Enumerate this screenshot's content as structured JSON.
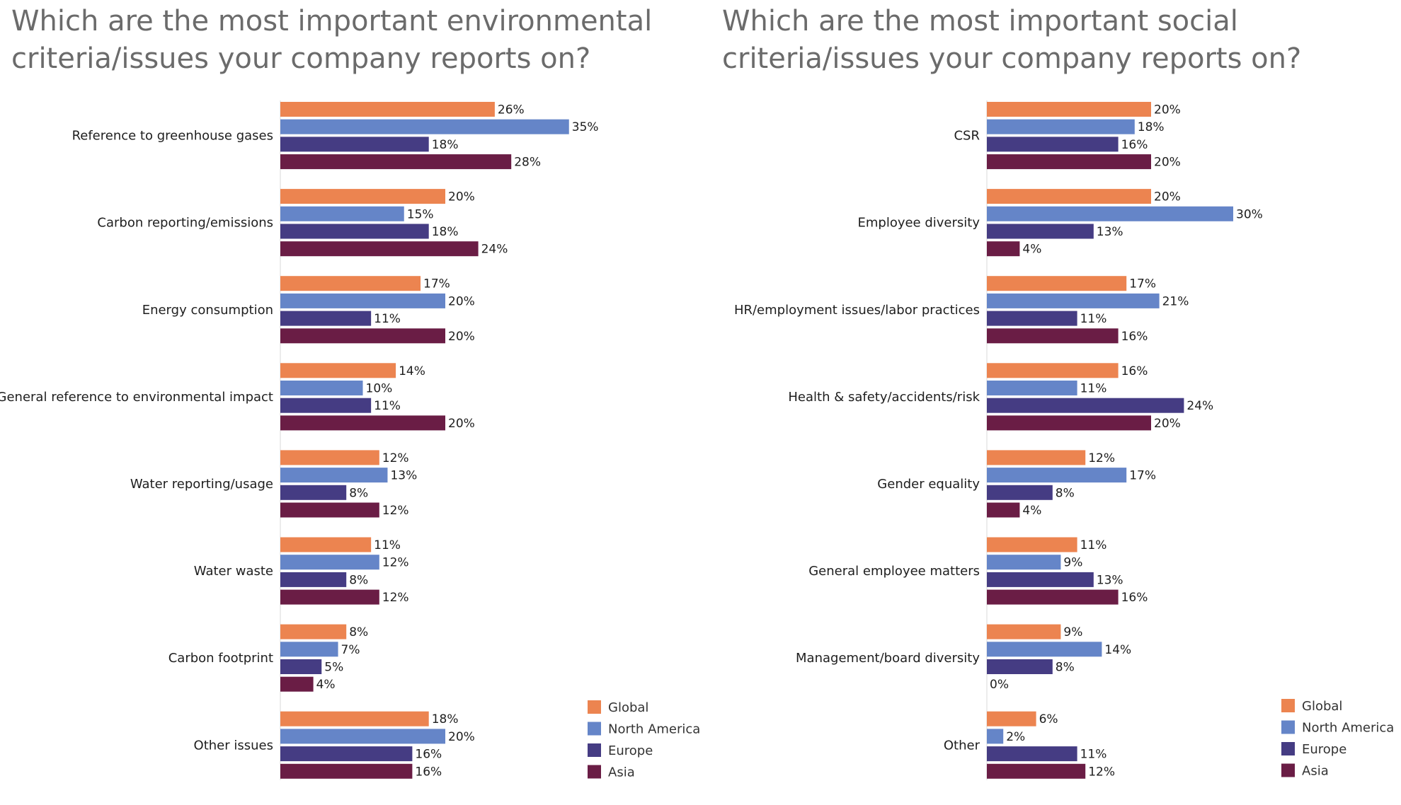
{
  "colors": {
    "Global": "#ec8450",
    "North America": "#6585c8",
    "Europe": "#453c83",
    "Asia": "#6a1d45",
    "title": "#6b6b6b"
  },
  "chart_data": [
    {
      "type": "bar",
      "orientation": "horizontal",
      "title": "Which are the most important environmental\ncriteria/issues your company reports on?",
      "categories": [
        "Reference to greenhouse gases",
        "Carbon reporting/emissions",
        "Energy consumption",
        "General reference to environmental impact",
        "Water reporting/usage",
        "Water waste",
        "Carbon footprint",
        "Other issues"
      ],
      "series": [
        {
          "name": "Global",
          "values": [
            26,
            20,
            17,
            14,
            12,
            11,
            8,
            18
          ]
        },
        {
          "name": "North America",
          "values": [
            35,
            15,
            20,
            10,
            13,
            12,
            7,
            20
          ]
        },
        {
          "name": "Europe",
          "values": [
            18,
            18,
            11,
            11,
            8,
            8,
            5,
            16
          ]
        },
        {
          "name": "Asia",
          "values": [
            28,
            24,
            20,
            20,
            12,
            12,
            4,
            16
          ]
        }
      ],
      "value_suffix": "%",
      "legend": "bottom-right",
      "grid": false
    },
    {
      "type": "bar",
      "orientation": "horizontal",
      "title": "Which are the most important social\ncriteria/issues your company reports on?",
      "categories": [
        "CSR",
        "Employee diversity",
        "HR/employment issues/labor practices",
        "Health & safety/accidents/risk",
        "Gender equality",
        "General employee matters",
        "Management/board diversity",
        "Other"
      ],
      "series": [
        {
          "name": "Global",
          "values": [
            20,
            20,
            17,
            16,
            12,
            11,
            9,
            6
          ]
        },
        {
          "name": "North America",
          "values": [
            18,
            30,
            21,
            11,
            17,
            9,
            14,
            2
          ]
        },
        {
          "name": "Europe",
          "values": [
            16,
            13,
            11,
            24,
            8,
            13,
            8,
            11
          ]
        },
        {
          "name": "Asia",
          "values": [
            20,
            4,
            16,
            20,
            4,
            16,
            0,
            12
          ]
        }
      ],
      "value_suffix": "%",
      "legend": "bottom-right",
      "grid": false
    }
  ]
}
